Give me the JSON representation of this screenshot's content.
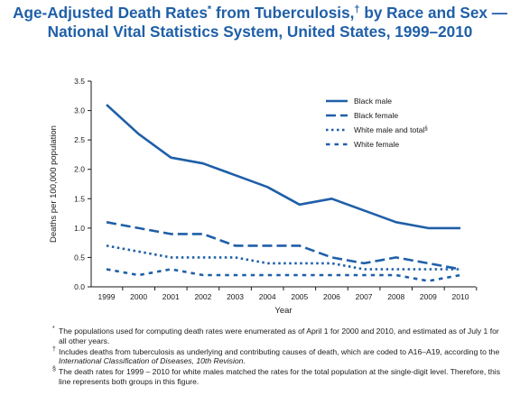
{
  "title": {
    "line1_a": "Age-Adjusted Death Rates",
    "line1_star": "*",
    "line1_b": " from Tuberculosis,",
    "line1_dagger": "†",
    "line1_c": " by Race and Sex —",
    "line2": "National Vital Statistics System, United States, 1999–2010"
  },
  "chart_data": {
    "type": "line",
    "x": [
      1999,
      2000,
      2001,
      2002,
      2003,
      2004,
      2005,
      2006,
      2007,
      2008,
      2009,
      2010
    ],
    "xlabel": "Year",
    "ylabel": "Deaths per 100,000 population",
    "ylim": [
      0,
      3.5
    ],
    "yticks": [
      "0.0",
      "0.5",
      "1.0",
      "1.5",
      "2.0",
      "2.5",
      "3.0",
      "3.5"
    ],
    "grid": false,
    "legend_position": "top-right",
    "series": [
      {
        "name": "Black male",
        "style": "solid",
        "values": [
          3.1,
          2.6,
          2.2,
          2.1,
          1.9,
          1.7,
          1.4,
          1.5,
          1.3,
          1.1,
          1.0,
          1.0
        ]
      },
      {
        "name": "Black female",
        "style": "dashed",
        "values": [
          1.1,
          1.0,
          0.9,
          0.9,
          0.7,
          0.7,
          0.7,
          0.5,
          0.4,
          0.5,
          0.4,
          0.3
        ]
      },
      {
        "name": "White male and total",
        "name_mark": "§",
        "style": "dotted",
        "values": [
          0.7,
          0.6,
          0.5,
          0.5,
          0.5,
          0.4,
          0.4,
          0.4,
          0.3,
          0.3,
          0.3,
          0.3
        ]
      },
      {
        "name": "White female",
        "style": "short-dashed",
        "values": [
          0.3,
          0.2,
          0.3,
          0.2,
          0.2,
          0.2,
          0.2,
          0.2,
          0.2,
          0.2,
          0.1,
          0.2
        ]
      }
    ],
    "line_color": "#1f5fa8"
  },
  "notes": [
    {
      "mark": "*",
      "text": "The populations used for computing death rates were enumerated as of April 1 for 2000 and 2010, and estimated as of July 1 for all other years."
    },
    {
      "mark": "†",
      "text_before": "Includes deaths from tuberculosis as underlying and contributing causes of death, which are coded to A16–A19, according to the ",
      "text_italic": "International Classification of Diseases, 10th Revision",
      "text_after": "."
    },
    {
      "mark": "§",
      "text": "The death rates for 1999 – 2010 for white males matched the rates for the total population at the single-digit level. Therefore, this line represents both groups in this figure."
    }
  ]
}
